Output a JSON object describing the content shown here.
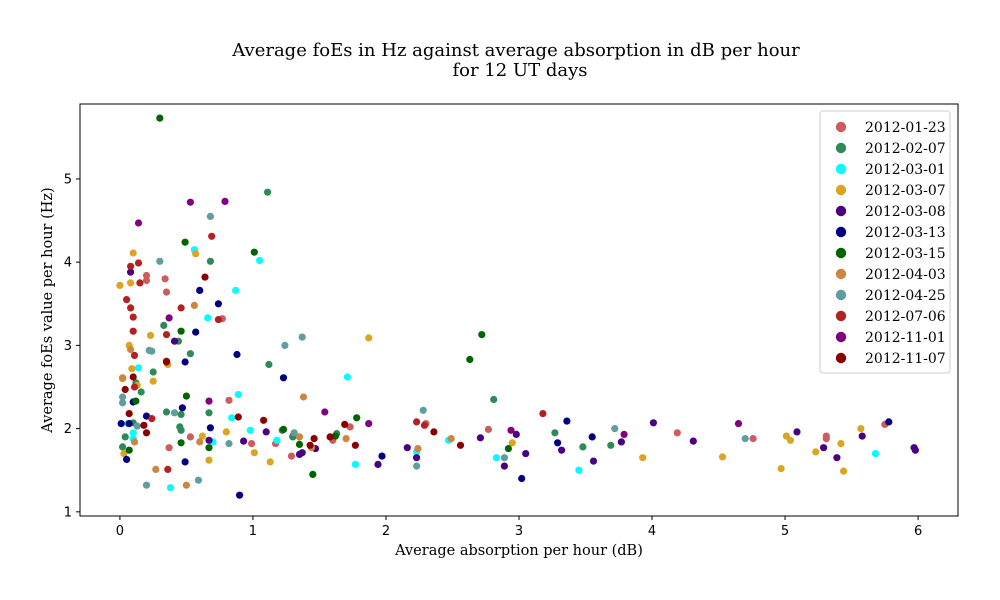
{
  "chart_data": {
    "type": "scatter",
    "title_line1": "Average foEs in Hz against average absorption in dB per hour",
    "title_line2": "for 12 UT days",
    "xlabel": "Average absorption per hour (dB)",
    "ylabel": "Average foEs value per hour (Hz)",
    "xlim": [
      -0.3,
      6.3
    ],
    "ylim": [
      0.95,
      5.9
    ],
    "xticks": [
      0,
      1,
      2,
      3,
      4,
      5,
      6
    ],
    "yticks": [
      1,
      2,
      3,
      4,
      5
    ],
    "legend_position": "top-right",
    "series": [
      {
        "name": "2012-01-23",
        "color": "#cd5c5c",
        "points": [
          [
            0.2,
            3.84
          ],
          [
            0.2,
            3.78
          ],
          [
            0.34,
            3.8
          ],
          [
            0.35,
            3.64
          ],
          [
            0.37,
            1.77
          ],
          [
            0.53,
            1.9
          ],
          [
            0.77,
            3.32
          ],
          [
            0.82,
            2.34
          ],
          [
            0.99,
            1.82
          ],
          [
            1.17,
            1.82
          ],
          [
            1.29,
            1.67
          ],
          [
            1.3,
            1.91
          ],
          [
            1.6,
            1.86
          ],
          [
            1.73,
            2.02
          ],
          [
            2.3,
            2.06
          ],
          [
            2.77,
            1.99
          ],
          [
            4.19,
            1.95
          ],
          [
            4.76,
            1.88
          ],
          [
            5.31,
            1.88
          ],
          [
            5.31,
            1.91
          ],
          [
            5.75,
            2.05
          ]
        ]
      },
      {
        "name": "2012-02-07",
        "color": "#2e8b57",
        "points": [
          [
            0.02,
            1.78
          ],
          [
            0.04,
            1.9
          ],
          [
            0.1,
            2.07
          ],
          [
            0.12,
            2.55
          ],
          [
            0.16,
            2.44
          ],
          [
            0.25,
            2.68
          ],
          [
            0.33,
            3.24
          ],
          [
            0.35,
            2.2
          ],
          [
            0.44,
            3.05
          ],
          [
            0.45,
            2.02
          ],
          [
            0.46,
            2.17
          ],
          [
            0.46,
            1.98
          ],
          [
            0.53,
            2.9
          ],
          [
            0.67,
            2.19
          ],
          [
            0.68,
            4.01
          ],
          [
            1.11,
            4.84
          ],
          [
            1.12,
            2.77
          ],
          [
            1.22,
            1.98
          ],
          [
            1.3,
            1.9
          ],
          [
            1.63,
            1.94
          ],
          [
            2.81,
            2.35
          ],
          [
            3.27,
            1.95
          ],
          [
            3.48,
            1.78
          ],
          [
            3.69,
            1.8
          ]
        ]
      },
      {
        "name": "2012-03-01",
        "color": "#00ffff",
        "points": [
          [
            0.06,
            2.06
          ],
          [
            0.1,
            1.88
          ],
          [
            0.1,
            1.95
          ],
          [
            0.14,
            2.73
          ],
          [
            0.38,
            1.29
          ],
          [
            0.56,
            4.15
          ],
          [
            0.66,
            3.33
          ],
          [
            0.7,
            1.84
          ],
          [
            0.84,
            2.13
          ],
          [
            0.87,
            3.66
          ],
          [
            0.89,
            2.41
          ],
          [
            0.98,
            1.98
          ],
          [
            1.05,
            4.02
          ],
          [
            1.18,
            1.86
          ],
          [
            1.71,
            2.62
          ],
          [
            1.77,
            1.57
          ],
          [
            2.23,
            1.72
          ],
          [
            2.47,
            1.86
          ],
          [
            2.83,
            1.65
          ],
          [
            3.45,
            1.5
          ],
          [
            5.68,
            1.7
          ]
        ]
      },
      {
        "name": "2012-03-07",
        "color": "#daa520",
        "points": [
          [
            0.0,
            3.72
          ],
          [
            0.02,
            2.6
          ],
          [
            0.03,
            1.7
          ],
          [
            0.07,
            3.0
          ],
          [
            0.08,
            3.75
          ],
          [
            0.09,
            2.72
          ],
          [
            0.1,
            4.11
          ],
          [
            0.13,
            2.52
          ],
          [
            0.23,
            3.12
          ],
          [
            0.25,
            2.57
          ],
          [
            0.36,
            2.77
          ],
          [
            0.57,
            4.1
          ],
          [
            0.62,
            1.91
          ],
          [
            0.67,
            1.62
          ],
          [
            0.8,
            1.96
          ],
          [
            1.01,
            1.71
          ],
          [
            1.13,
            1.6
          ],
          [
            1.87,
            3.09
          ],
          [
            2.95,
            1.83
          ],
          [
            3.93,
            1.65
          ],
          [
            4.53,
            1.66
          ],
          [
            4.97,
            1.52
          ],
          [
            5.01,
            1.91
          ],
          [
            5.04,
            1.86
          ],
          [
            5.23,
            1.72
          ],
          [
            5.42,
            1.82
          ],
          [
            5.44,
            1.49
          ],
          [
            5.57,
            2.0
          ]
        ]
      },
      {
        "name": "2012-03-08",
        "color": "#4b0082",
        "points": [
          [
            0.08,
            3.88
          ],
          [
            0.41,
            3.05
          ],
          [
            0.67,
            1.86
          ],
          [
            0.93,
            1.85
          ],
          [
            1.1,
            1.96
          ],
          [
            1.35,
            1.69
          ],
          [
            1.37,
            1.71
          ],
          [
            1.47,
            1.76
          ],
          [
            1.94,
            1.57
          ],
          [
            2.16,
            1.77
          ],
          [
            2.23,
            1.65
          ],
          [
            2.71,
            1.89
          ],
          [
            2.89,
            1.55
          ],
          [
            2.98,
            1.93
          ],
          [
            3.05,
            1.7
          ],
          [
            3.32,
            1.74
          ],
          [
            3.56,
            1.61
          ],
          [
            3.77,
            1.84
          ],
          [
            4.01,
            2.07
          ],
          [
            4.31,
            1.85
          ],
          [
            5.09,
            1.96
          ],
          [
            5.29,
            1.77
          ],
          [
            5.39,
            1.65
          ],
          [
            5.58,
            1.91
          ],
          [
            5.97,
            1.77
          ],
          [
            5.98,
            1.74
          ]
        ]
      },
      {
        "name": "2012-03-13",
        "color": "#000080",
        "points": [
          [
            0.01,
            2.06
          ],
          [
            0.05,
            1.63
          ],
          [
            0.07,
            2.06
          ],
          [
            0.1,
            2.32
          ],
          [
            0.2,
            2.15
          ],
          [
            0.47,
            2.25
          ],
          [
            0.49,
            2.8
          ],
          [
            0.49,
            1.6
          ],
          [
            0.57,
            3.16
          ],
          [
            0.6,
            3.66
          ],
          [
            0.68,
            2.01
          ],
          [
            0.74,
            3.5
          ],
          [
            0.88,
            2.89
          ],
          [
            0.9,
            1.2
          ],
          [
            1.23,
            2.61
          ],
          [
            1.97,
            1.67
          ],
          [
            3.02,
            1.4
          ],
          [
            3.29,
            1.83
          ],
          [
            3.36,
            2.09
          ],
          [
            3.55,
            1.9
          ],
          [
            5.78,
            2.08
          ]
        ]
      },
      {
        "name": "2012-03-15",
        "color": "#006400",
        "points": [
          [
            0.07,
            1.74
          ],
          [
            0.12,
            2.33
          ],
          [
            0.3,
            5.73
          ],
          [
            0.46,
            1.83
          ],
          [
            0.46,
            3.17
          ],
          [
            0.49,
            4.24
          ],
          [
            0.5,
            2.39
          ],
          [
            0.67,
            1.77
          ],
          [
            1.01,
            4.12
          ],
          [
            1.23,
            1.99
          ],
          [
            1.35,
            1.81
          ],
          [
            1.45,
            1.45
          ],
          [
            1.62,
            1.91
          ],
          [
            1.78,
            2.13
          ],
          [
            2.63,
            2.83
          ],
          [
            2.72,
            3.13
          ],
          [
            2.92,
            1.76
          ]
        ]
      },
      {
        "name": "2012-04-03",
        "color": "#cd853f",
        "points": [
          [
            0.02,
            2.61
          ],
          [
            0.08,
            2.95
          ],
          [
            0.11,
            1.84
          ],
          [
            0.27,
            1.51
          ],
          [
            0.5,
            1.32
          ],
          [
            0.56,
            3.48
          ],
          [
            0.6,
            1.84
          ],
          [
            1.35,
            1.9
          ],
          [
            1.38,
            2.38
          ],
          [
            1.44,
            1.77
          ],
          [
            1.7,
            1.88
          ],
          [
            2.24,
            1.76
          ],
          [
            2.49,
            1.88
          ]
        ]
      },
      {
        "name": "2012-04-25",
        "color": "#5f9ea0",
        "points": [
          [
            0.02,
            2.31
          ],
          [
            0.02,
            2.38
          ],
          [
            0.13,
            2.03
          ],
          [
            0.2,
            1.32
          ],
          [
            0.22,
            2.94
          ],
          [
            0.24,
            2.93
          ],
          [
            0.3,
            4.01
          ],
          [
            0.41,
            2.19
          ],
          [
            0.59,
            1.38
          ],
          [
            0.68,
            4.55
          ],
          [
            0.82,
            1.82
          ],
          [
            1.24,
            3.0
          ],
          [
            1.31,
            1.95
          ],
          [
            1.37,
            3.1
          ],
          [
            2.23,
            1.55
          ],
          [
            2.28,
            2.22
          ],
          [
            2.89,
            1.65
          ],
          [
            3.72,
            2.0
          ],
          [
            4.7,
            1.88
          ]
        ]
      },
      {
        "name": "2012-07-06",
        "color": "#b22222",
        "points": [
          [
            0.05,
            3.55
          ],
          [
            0.08,
            3.45
          ],
          [
            0.08,
            3.95
          ],
          [
            0.1,
            3.34
          ],
          [
            0.1,
            3.17
          ],
          [
            0.11,
            2.88
          ],
          [
            0.11,
            2.5
          ],
          [
            0.14,
            3.99
          ],
          [
            0.15,
            3.75
          ],
          [
            0.24,
            2.12
          ],
          [
            0.35,
            2.81
          ],
          [
            0.35,
            3.13
          ],
          [
            0.36,
            1.51
          ],
          [
            0.46,
            3.45
          ],
          [
            0.69,
            4.31
          ],
          [
            0.74,
            3.31
          ],
          [
            2.23,
            2.08
          ],
          [
            2.29,
            2.04
          ],
          [
            3.18,
            2.18
          ]
        ]
      },
      {
        "name": "2012-11-01",
        "color": "#800080",
        "points": [
          [
            0.14,
            4.47
          ],
          [
            0.37,
            3.33
          ],
          [
            0.53,
            4.72
          ],
          [
            0.67,
            2.33
          ],
          [
            0.79,
            4.73
          ],
          [
            1.54,
            2.2
          ],
          [
            1.87,
            2.06
          ],
          [
            2.94,
            1.98
          ],
          [
            3.79,
            1.93
          ],
          [
            4.65,
            2.06
          ]
        ]
      },
      {
        "name": "2012-11-07",
        "color": "#8b0000",
        "points": [
          [
            0.04,
            2.47
          ],
          [
            0.07,
            2.18
          ],
          [
            0.1,
            2.62
          ],
          [
            0.18,
            2.04
          ],
          [
            0.2,
            1.95
          ],
          [
            0.35,
            2.8
          ],
          [
            0.64,
            3.82
          ],
          [
            0.89,
            2.14
          ],
          [
            1.08,
            2.1
          ],
          [
            1.43,
            1.8
          ],
          [
            1.46,
            1.88
          ],
          [
            1.58,
            1.9
          ],
          [
            1.69,
            2.05
          ],
          [
            1.77,
            1.8
          ],
          [
            2.36,
            1.96
          ],
          [
            2.56,
            1.8
          ]
        ]
      }
    ]
  }
}
